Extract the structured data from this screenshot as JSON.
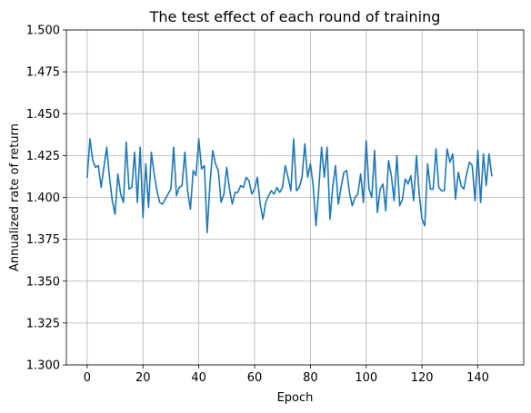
{
  "chart_data": {
    "type": "line",
    "title": "The test effect of each round of training",
    "xlabel": "Epoch",
    "ylabel": "Annualized rate of return",
    "xlim": [
      -7.45,
      156.45
    ],
    "ylim": [
      1.3,
      1.5
    ],
    "xticks": [
      0,
      20,
      40,
      60,
      80,
      100,
      120,
      140
    ],
    "xtick_labels": [
      "0",
      "20",
      "40",
      "60",
      "80",
      "100",
      "120",
      "140"
    ],
    "yticks": [
      1.3,
      1.325,
      1.35,
      1.375,
      1.4,
      1.425,
      1.45,
      1.475,
      1.5
    ],
    "ytick_labels": [
      "1.300",
      "1.325",
      "1.350",
      "1.375",
      "1.400",
      "1.425",
      "1.450",
      "1.475",
      "1.500"
    ],
    "grid": true,
    "series": [
      {
        "color": "#1f77b4",
        "x_start": 0,
        "x_step": 1,
        "values": [
          1.412,
          1.435,
          1.422,
          1.418,
          1.419,
          1.406,
          1.418,
          1.43,
          1.412,
          1.398,
          1.39,
          1.414,
          1.402,
          1.397,
          1.433,
          1.405,
          1.406,
          1.427,
          1.397,
          1.43,
          1.388,
          1.42,
          1.394,
          1.427,
          1.414,
          1.404,
          1.397,
          1.396,
          1.399,
          1.402,
          1.405,
          1.43,
          1.401,
          1.406,
          1.407,
          1.427,
          1.404,
          1.393,
          1.416,
          1.413,
          1.435,
          1.417,
          1.419,
          1.379,
          1.408,
          1.428,
          1.42,
          1.416,
          1.397,
          1.402,
          1.418,
          1.405,
          1.396,
          1.403,
          1.403,
          1.407,
          1.406,
          1.412,
          1.41,
          1.402,
          1.405,
          1.412,
          1.396,
          1.387,
          1.397,
          1.401,
          1.404,
          1.402,
          1.406,
          1.403,
          1.406,
          1.419,
          1.412,
          1.404,
          1.435,
          1.404,
          1.406,
          1.412,
          1.432,
          1.412,
          1.42,
          1.407,
          1.383,
          1.405,
          1.43,
          1.412,
          1.43,
          1.387,
          1.406,
          1.419,
          1.396,
          1.406,
          1.415,
          1.416,
          1.403,
          1.395,
          1.4,
          1.402,
          1.414,
          1.397,
          1.434,
          1.405,
          1.4,
          1.428,
          1.391,
          1.405,
          1.408,
          1.392,
          1.422,
          1.413,
          1.398,
          1.425,
          1.395,
          1.399,
          1.411,
          1.408,
          1.413,
          1.398,
          1.425,
          1.402,
          1.387,
          1.383,
          1.42,
          1.405,
          1.405,
          1.429,
          1.406,
          1.404,
          1.404,
          1.429,
          1.421,
          1.426,
          1.399,
          1.415,
          1.407,
          1.405,
          1.414,
          1.421,
          1.419,
          1.398,
          1.428,
          1.397,
          1.426,
          1.407,
          1.426,
          1.413
        ]
      }
    ]
  }
}
